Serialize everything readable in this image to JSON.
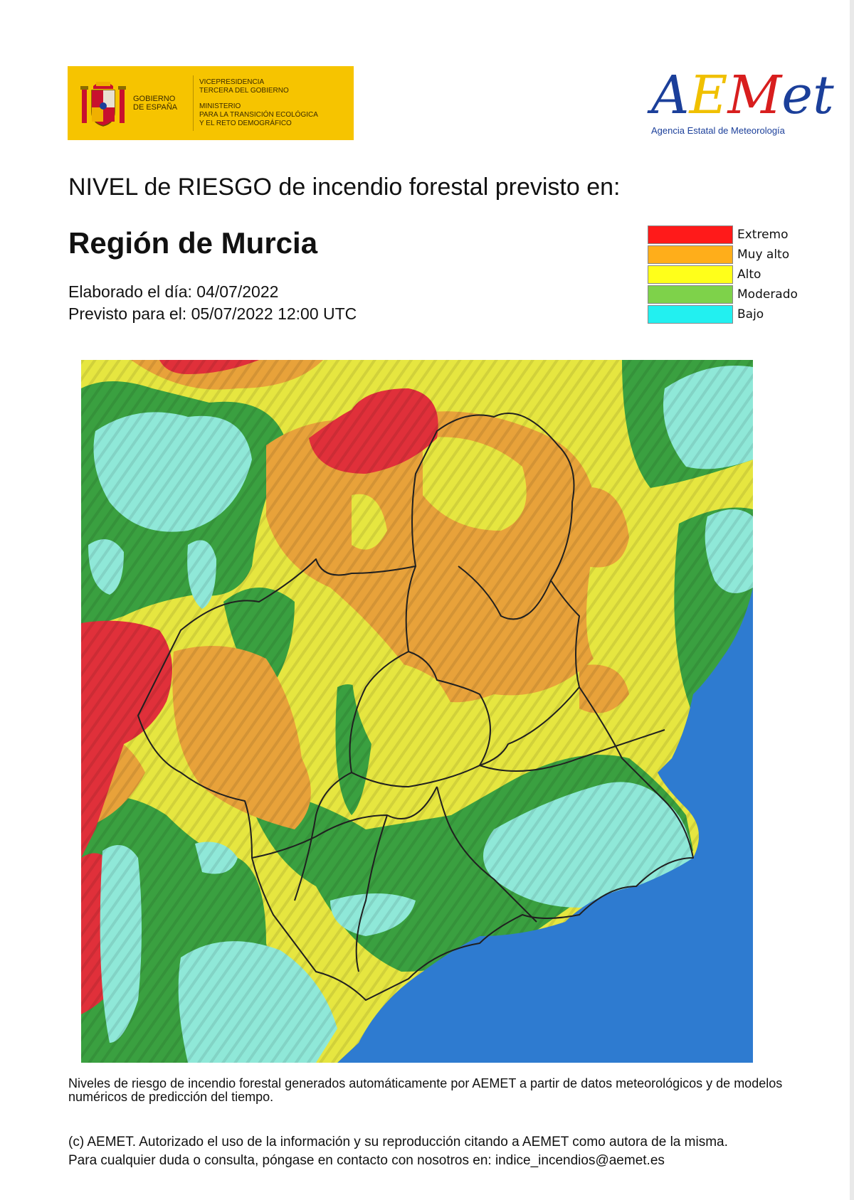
{
  "header": {
    "gov_logo": {
      "gov_text": [
        "GOBIERNO",
        "DE ESPAÑA"
      ],
      "ministry_lines_1": [
        "VICEPRESIDENCIA",
        "TERCERA DEL GOBIERNO"
      ],
      "ministry_lines_2": [
        "MINISTERIO",
        "PARA LA TRANSICIÓN ECOLÓGICA",
        "Y EL RETO DEMOGRÁFICO"
      ],
      "background": "#f6c400"
    },
    "aemet_logo": {
      "word": "AEMet",
      "subtitle": "Agencia Estatal de Meteorología"
    }
  },
  "title": {
    "heading": "NIVEL de RIESGO de incendio forestal previsto en:",
    "region": "Región de Murcia",
    "elaborated": "Elaborado el día: 04/07/2022",
    "forecast": "Previsto para el: 05/07/2022 12:00 UTC"
  },
  "legend": [
    {
      "label": "Extremo",
      "color": "#ff1a1a"
    },
    {
      "label": "Muy alto",
      "color": "#ffae1a"
    },
    {
      "label": "Alto",
      "color": "#ffff1a"
    },
    {
      "label": "Moderado",
      "color": "#7ed24a"
    },
    {
      "label": "Bajo",
      "color": "#22f0f0"
    }
  ],
  "map": {
    "colors": {
      "extreme": "#e0303a",
      "very_high": "#e8a23a",
      "high": "#e6e640",
      "moderate": "#3aa040",
      "low": "#8fe8d8",
      "sea": "#2e7bd0",
      "border": "#202020"
    }
  },
  "footer": {
    "note": "Niveles de riesgo de incendio forestal generados automáticamente por AEMET a partir de datos meteorológicos y de modelos numéricos de predicción del tiempo.",
    "copyright_line1": "(c) AEMET. Autorizado el uso de la información y su reproducción citando a AEMET como autora de la misma.",
    "copyright_line2": "Para cualquier duda o consulta, póngase en contacto con nosotros en: indice_incendios@aemet.es"
  }
}
